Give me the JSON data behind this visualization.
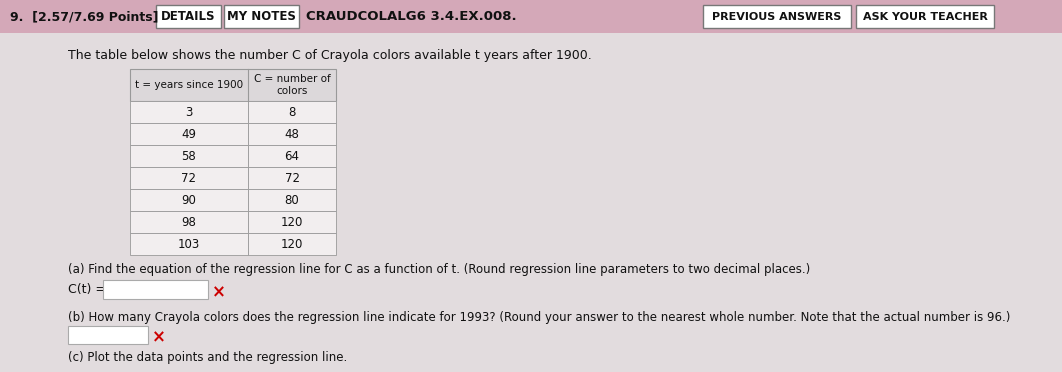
{
  "title_points": "9.  [2.57/7.69 Points]",
  "btn_details": "DETAILS",
  "btn_my_notes": "MY NOTES",
  "problem_code": "CRAUDCOLALG6 3.4.EX.008.",
  "btn_prev": "PREVIOUS ANSWERS",
  "btn_ask": "ASK YOUR TEACHER",
  "description": "The table below shows the number C of Crayola colors available t years after 1900.",
  "table_header_t": "t = years since 1900",
  "table_header_c": "C = number of\ncolors",
  "table_data_t": [
    3,
    49,
    58,
    72,
    90,
    98,
    103
  ],
  "table_data_c": [
    8,
    48,
    64,
    72,
    80,
    120,
    120
  ],
  "part_a_label": "(a) Find the equation of the regression line for C as a function of t. (Round regression line parameters to two decimal places.)",
  "c_t_label": "C(t) =",
  "x_mark": "×",
  "part_b_label": "(b) How many Crayola colors does the regression line indicate for 1993? (Round your answer to the nearest whole number. Note that the actual number is 96.)",
  "part_c_label": "(c) Plot the data points and the regression line.",
  "header_bg": "#d4a8b8",
  "body_bg": "#d8cdd0",
  "content_bg": "#e8e4e6",
  "btn_bg": "#ffffff",
  "btn_border": "#888888",
  "table_header_bg": "#e0dce0",
  "table_row_bg": "#f0ecee",
  "table_border": "#999999",
  "input_box_bg": "#ffffff",
  "input_box_border": "#aaaaaa",
  "red_x_color": "#cc0000",
  "text_color": "#111111",
  "header_text_color": "#111111"
}
